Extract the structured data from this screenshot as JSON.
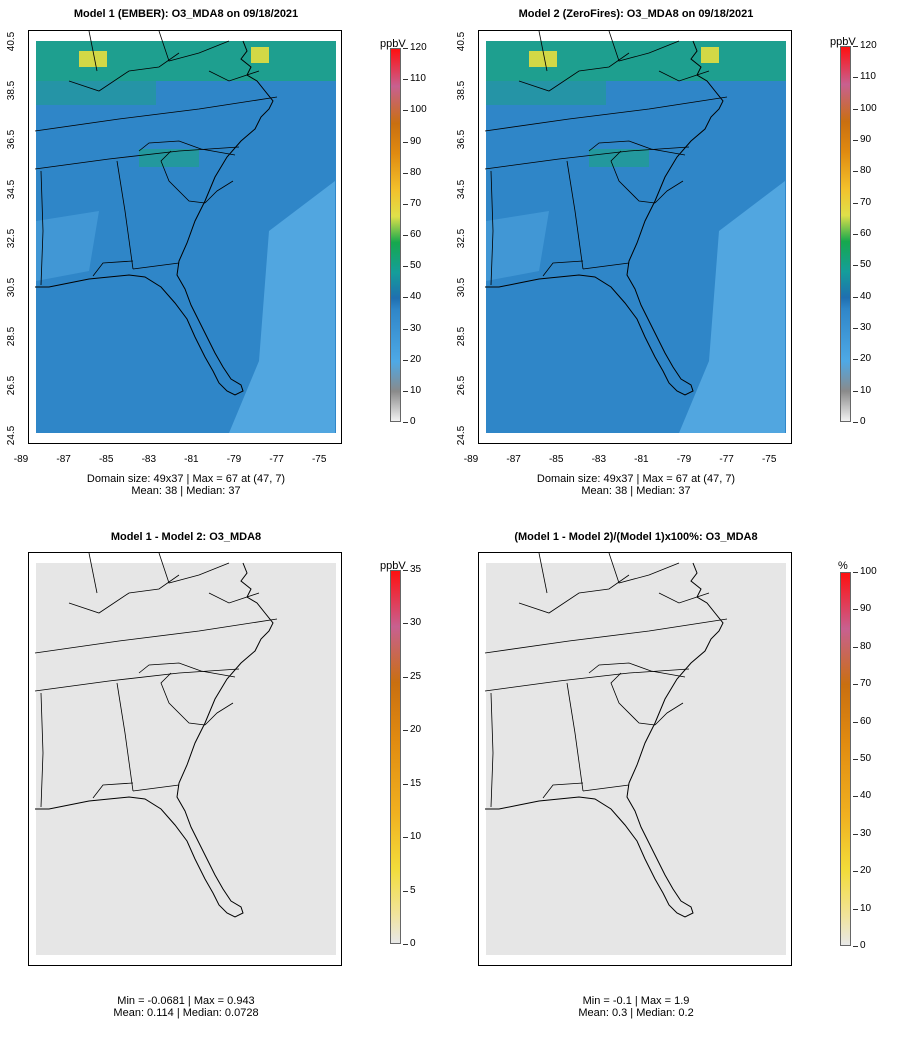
{
  "panels": [
    {
      "title": "Model 1 (EMBER): O3_MDA8 on 09/18/2021",
      "stats_line1": "Domain size: 49x37 | Max = 67 at (47, 7)",
      "stats_line2": "Mean: 38 |  Median: 37",
      "unit": "ppbV",
      "colorbar_ticks": [
        "120",
        "110",
        "100",
        "90",
        "80",
        "70",
        "60",
        "50",
        "40",
        "30",
        "20",
        "10",
        "0"
      ],
      "x_ticks": [
        "-89",
        "-87",
        "-85",
        "-83",
        "-81",
        "-79",
        "-77",
        "-75"
      ],
      "y_ticks": [
        "40.5",
        "38.5",
        "36.5",
        "34.5",
        "32.5",
        "30.5",
        "28.5",
        "26.5",
        "24.5"
      ],
      "fill": "ozone"
    },
    {
      "title": "Model 2 (ZeroFires): O3_MDA8 on 09/18/2021",
      "stats_line1": "Domain size: 49x37 | Max = 67 at (47, 7)",
      "stats_line2": "Mean: 38 |  Median: 37",
      "unit": "ppbV",
      "colorbar_ticks": [
        "120",
        "110",
        "100",
        "90",
        "80",
        "70",
        "60",
        "50",
        "40",
        "30",
        "20",
        "10",
        "0"
      ],
      "x_ticks": [
        "-89",
        "-87",
        "-85",
        "-83",
        "-81",
        "-79",
        "-77",
        "-75"
      ],
      "y_ticks": [
        "40.5",
        "38.5",
        "36.5",
        "34.5",
        "32.5",
        "30.5",
        "28.5",
        "26.5",
        "24.5"
      ],
      "fill": "ozone"
    },
    {
      "title": "Model 1 - Model 2: O3_MDA8",
      "stats_line1": "Min = -0.0681 | Max = 0.943",
      "stats_line2": "Mean: 0.114 |  Median: 0.0728",
      "unit": "ppbV",
      "colorbar_ticks": [
        "35",
        "30",
        "25",
        "20",
        "15",
        "10",
        "5",
        "0"
      ],
      "fill": "diff"
    },
    {
      "title": "(Model 1 - Model 2)/(Model 1)x100%: O3_MDA8",
      "stats_line1": "Min = -0.1 | Max = 1.9",
      "stats_line2": "Mean: 0.3 |  Median: 0.2",
      "unit": "%",
      "colorbar_ticks": [
        "100",
        "90",
        "80",
        "70",
        "60",
        "50",
        "40",
        "30",
        "20",
        "10",
        "0"
      ],
      "fill": "diff"
    }
  ],
  "colors": {
    "ozone_background": "#2f86c8",
    "ozone_high": "#1aa77c",
    "ozone_peak": "#f2e23a",
    "diff_background": "#e6e6e6",
    "outline": "#000000"
  }
}
